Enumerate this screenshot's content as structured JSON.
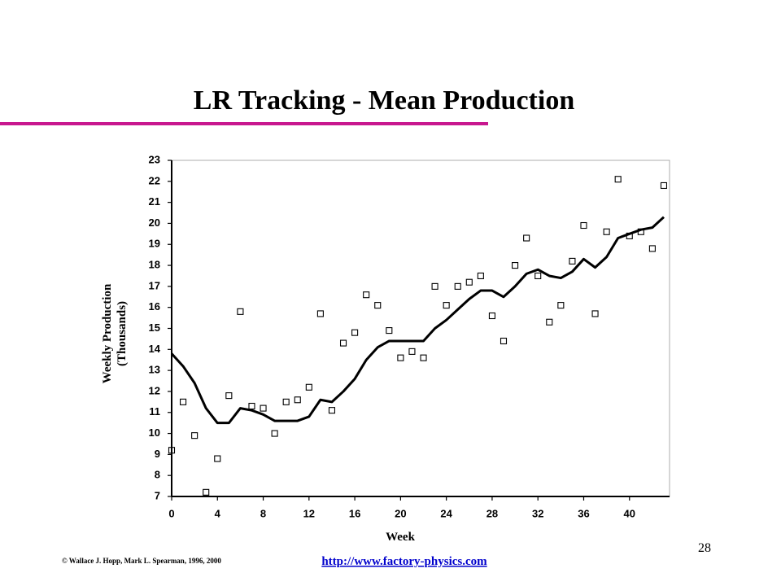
{
  "chart_data": {
    "type": "scatter",
    "title": "LR Tracking - Mean Production",
    "xlabel": "Week",
    "ylabel": [
      "Weekly Production",
      "(Thousands)"
    ],
    "x": [
      0,
      1,
      2,
      3,
      4,
      5,
      6,
      7,
      8,
      9,
      10,
      11,
      12,
      13,
      14,
      15,
      16,
      17,
      18,
      19,
      20,
      21,
      22,
      23,
      24,
      25,
      26,
      27,
      28,
      29,
      30,
      31,
      32,
      33,
      34,
      35,
      36,
      37,
      38,
      39,
      40,
      41,
      42,
      43
    ],
    "series": [
      {
        "type": "scatter",
        "color": "#000000",
        "values": [
          9.2,
          11.5,
          9.9,
          7.2,
          8.8,
          11.8,
          15.8,
          11.3,
          11.2,
          10.0,
          11.5,
          11.6,
          12.2,
          15.7,
          11.1,
          14.3,
          14.8,
          16.6,
          16.1,
          14.9,
          13.6,
          13.9,
          13.6,
          17.0,
          16.1,
          17.0,
          17.2,
          17.5,
          15.6,
          14.4,
          18.0,
          19.3,
          17.5,
          15.3,
          16.1,
          18.2,
          19.9,
          15.7,
          19.6,
          22.1,
          19.4,
          19.6,
          18.8,
          21.8
        ]
      },
      {
        "type": "line",
        "color": "#000000",
        "values": [
          13.8,
          13.2,
          12.4,
          11.2,
          10.5,
          10.5,
          11.2,
          11.1,
          10.9,
          10.6,
          10.6,
          10.6,
          10.8,
          11.6,
          11.5,
          12.0,
          12.6,
          13.5,
          14.1,
          14.4,
          14.4,
          14.4,
          14.4,
          15.0,
          15.4,
          15.9,
          16.4,
          16.8,
          16.8,
          16.5,
          17.0,
          17.6,
          17.8,
          17.5,
          17.4,
          17.7,
          18.3,
          17.9,
          18.4,
          19.3,
          19.5,
          19.7,
          19.8,
          20.3
        ]
      }
    ],
    "xlim": [
      0,
      43.5
    ],
    "xticks": [
      0,
      4,
      8,
      12,
      16,
      20,
      24,
      28,
      32,
      36,
      40
    ],
    "ylim": [
      7,
      23
    ],
    "yticks": [
      7,
      8,
      9,
      10,
      11,
      12,
      13,
      14,
      15,
      16,
      17,
      18,
      19,
      20,
      21,
      22,
      23
    ],
    "accent_color": "#c8188f"
  },
  "footer": {
    "copyright": "© Wallace J. Hopp, Mark L. Spearman, 1996, 2000",
    "url": "http://www.factory-physics.com",
    "page_number": 28
  }
}
